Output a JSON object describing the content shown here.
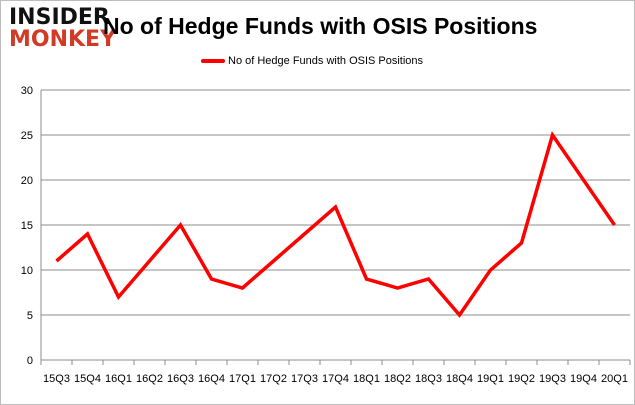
{
  "chart_data": {
    "type": "line",
    "title": "No of Hedge Funds with OSIS Positions",
    "categories": [
      "15Q3",
      "15Q4",
      "16Q1",
      "16Q2",
      "16Q3",
      "16Q4",
      "17Q1",
      "17Q2",
      "17Q3",
      "17Q4",
      "18Q1",
      "18Q2",
      "18Q3",
      "18Q4",
      "19Q1",
      "19Q2",
      "19Q3",
      "19Q4",
      "20Q1"
    ],
    "series": [
      {
        "name": "No of Hedge Funds with OSIS Positions",
        "color": "#ff0000",
        "values": [
          11,
          14,
          7,
          11,
          15,
          9,
          8,
          11,
          14,
          17,
          9,
          8,
          9,
          5,
          10,
          13,
          25,
          20,
          15
        ]
      }
    ],
    "ylim": [
      0,
      30
    ],
    "yticks": [
      0,
      5,
      10,
      15,
      20,
      25,
      30
    ],
    "grid": true,
    "legend": "top-center",
    "xlabel": "",
    "ylabel": ""
  },
  "logo": {
    "line1": "INSIDER",
    "line2": "MONKEY"
  }
}
